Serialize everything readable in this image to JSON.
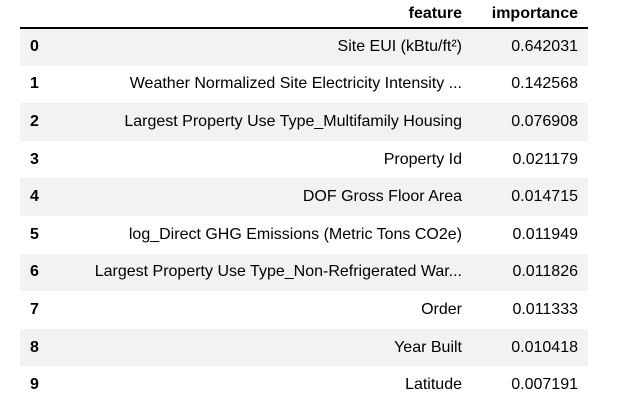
{
  "table": {
    "columns": [
      "",
      "feature",
      "importance"
    ],
    "rows": [
      {
        "index": "0",
        "feature": "Site EUI (kBtu/ft²)",
        "importance": "0.642031"
      },
      {
        "index": "1",
        "feature": "Weather Normalized Site Electricity Intensity ...",
        "importance": "0.142568"
      },
      {
        "index": "2",
        "feature": "Largest Property Use Type_Multifamily Housing",
        "importance": "0.076908"
      },
      {
        "index": "3",
        "feature": "Property Id",
        "importance": "0.021179"
      },
      {
        "index": "4",
        "feature": "DOF Gross Floor Area",
        "importance": "0.014715"
      },
      {
        "index": "5",
        "feature": "log_Direct GHG Emissions (Metric Tons CO2e)",
        "importance": "0.011949"
      },
      {
        "index": "6",
        "feature": "Largest Property Use Type_Non-Refrigerated War...",
        "importance": "0.011826"
      },
      {
        "index": "7",
        "feature": "Order",
        "importance": "0.011333"
      },
      {
        "index": "8",
        "feature": "Year Built",
        "importance": "0.010418"
      },
      {
        "index": "9",
        "feature": "Latitude",
        "importance": "0.007191"
      }
    ]
  },
  "colors": {
    "stripe": "#f2f2f2",
    "background": "#ffffff",
    "text": "#000000",
    "header_rule": "#000000"
  }
}
